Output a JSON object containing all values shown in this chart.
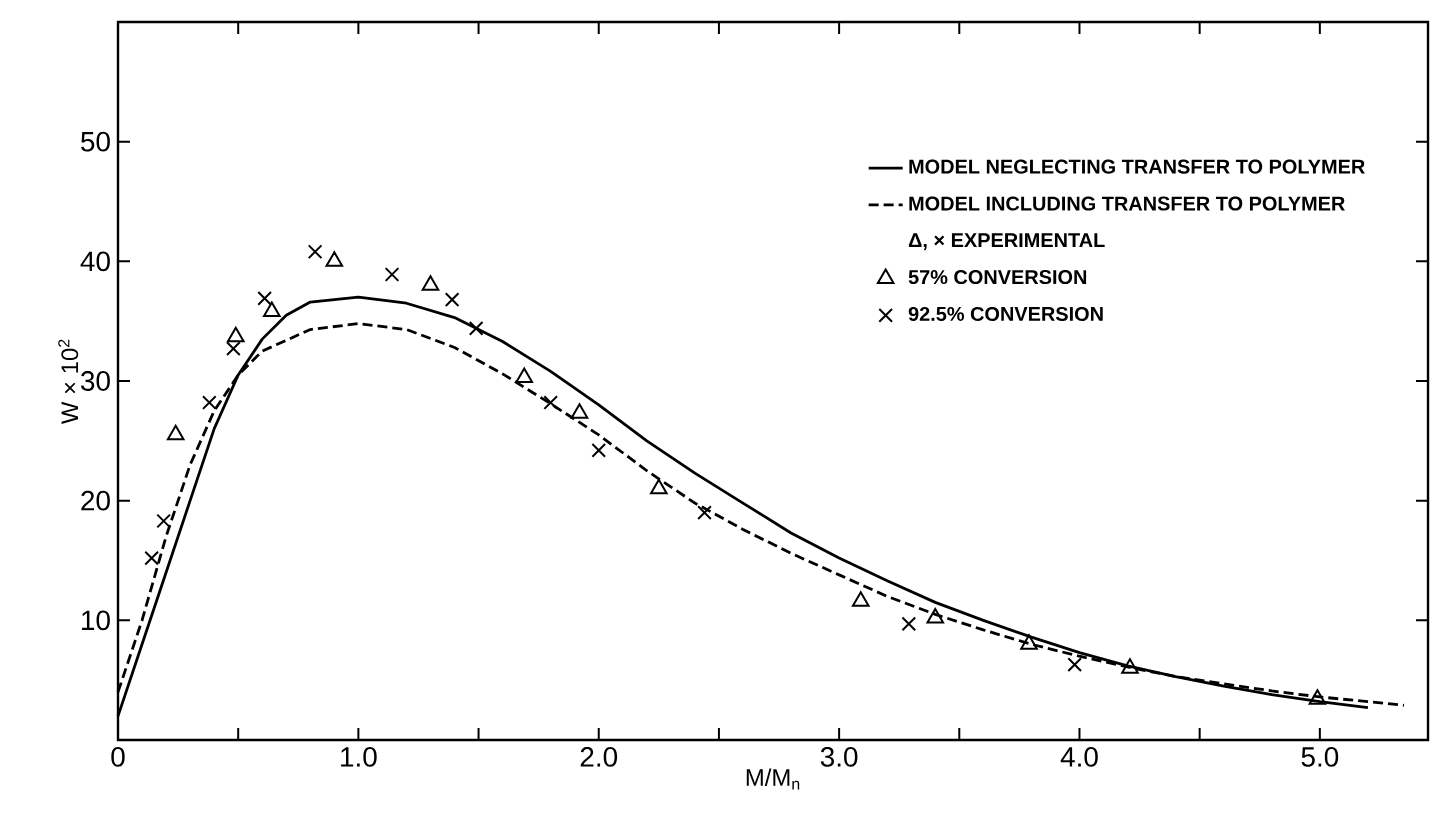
{
  "chart_data": {
    "type": "line",
    "xlabel": "M/M$_{n}$",
    "ylabel": "W × 10$^{2}$",
    "legend_title": "Δ, × EXPERIMENTAL",
    "legend": "top right",
    "xlim": [
      0,
      5.45
    ],
    "ylim": [
      0,
      60
    ],
    "xticks": [
      0,
      {
        "value": 0.5,
        "label": null
      },
      {
        "value": 1,
        "label": "1.0"
      },
      {
        "value": 1.5,
        "label": null
      },
      {
        "value": 2,
        "label": "2.0"
      },
      {
        "value": 2.5,
        "label": null
      },
      {
        "value": 3,
        "label": "3.0"
      },
      {
        "value": 3.5,
        "label": null
      },
      {
        "value": 4,
        "label": "4.0"
      },
      {
        "value": 4.5,
        "label": null
      },
      {
        "value": 5,
        "label": "5.0"
      }
    ],
    "yticks": [
      10,
      20,
      30,
      40,
      50
    ],
    "series": [
      {
        "name": "MODEL NEGLECTING TRANSFER TO POLYMER",
        "line_style": "solid",
        "marker": "none",
        "color": "#000000",
        "x": [
          0,
          0.1,
          0.2,
          0.3,
          0.4,
          0.5,
          0.6,
          0.7,
          0.8,
          1.0,
          1.2,
          1.4,
          1.6,
          1.8,
          2.0,
          2.2,
          2.4,
          2.6,
          2.8,
          3.0,
          3.2,
          3.4,
          3.6,
          3.8,
          4.0,
          4.2,
          4.4,
          4.6,
          4.8,
          5.0,
          5.2
        ],
        "values": [
          2,
          8,
          14,
          20,
          26,
          30.5,
          33.5,
          35.5,
          36.6,
          37.0,
          36.5,
          35.3,
          33.3,
          30.8,
          28.0,
          25.0,
          22.3,
          19.8,
          17.3,
          15.2,
          13.3,
          11.5,
          10.0,
          8.6,
          7.3,
          6.2,
          5.3,
          4.5,
          3.8,
          3.2,
          2.7
        ]
      },
      {
        "name": "MODEL INCLUDING TRANSFER TO POLYMER",
        "line_style": "dashed",
        "marker": "none",
        "color": "#000000",
        "x": [
          0,
          0.1,
          0.2,
          0.3,
          0.4,
          0.5,
          0.6,
          0.8,
          1.0,
          1.2,
          1.4,
          1.6,
          1.8,
          2.0,
          2.2,
          2.4,
          2.6,
          2.8,
          3.0,
          3.2,
          3.4,
          3.6,
          3.8,
          4.0,
          4.2,
          4.4,
          4.6,
          4.8,
          5.0,
          5.2,
          5.35
        ],
        "values": [
          4,
          10,
          17,
          23,
          27.5,
          30.5,
          32.5,
          34.3,
          34.8,
          34.3,
          32.8,
          30.6,
          28.1,
          25.5,
          22.5,
          19.8,
          17.6,
          15.6,
          13.8,
          12.0,
          10.5,
          9.2,
          8.0,
          7.0,
          6.1,
          5.3,
          4.7,
          4.1,
          3.6,
          3.2,
          2.9
        ]
      },
      {
        "name": "57% CONVERSION",
        "type": "scatter",
        "marker": "triangle",
        "color": "#000000",
        "x": [
          0.24,
          0.49,
          0.64,
          0.9,
          1.3,
          1.69,
          1.92,
          2.25,
          3.09,
          3.4,
          3.79,
          4.21,
          4.99
        ],
        "values": [
          25.5,
          33.7,
          35.8,
          40.0,
          38.0,
          30.3,
          27.3,
          21.0,
          11.6,
          10.2,
          8.0,
          6.0,
          3.4
        ]
      },
      {
        "name": "92.5% CONVERSION",
        "type": "scatter",
        "marker": "cross",
        "color": "#000000",
        "x": [
          0.14,
          0.19,
          0.38,
          0.48,
          0.61,
          0.82,
          1.14,
          1.39,
          1.49,
          1.8,
          2.0,
          2.44,
          3.29,
          3.98
        ],
        "values": [
          15.2,
          18.3,
          28.2,
          32.7,
          36.9,
          40.8,
          38.9,
          36.8,
          34.4,
          28.2,
          24.2,
          19.0,
          9.7,
          6.3
        ]
      }
    ]
  }
}
